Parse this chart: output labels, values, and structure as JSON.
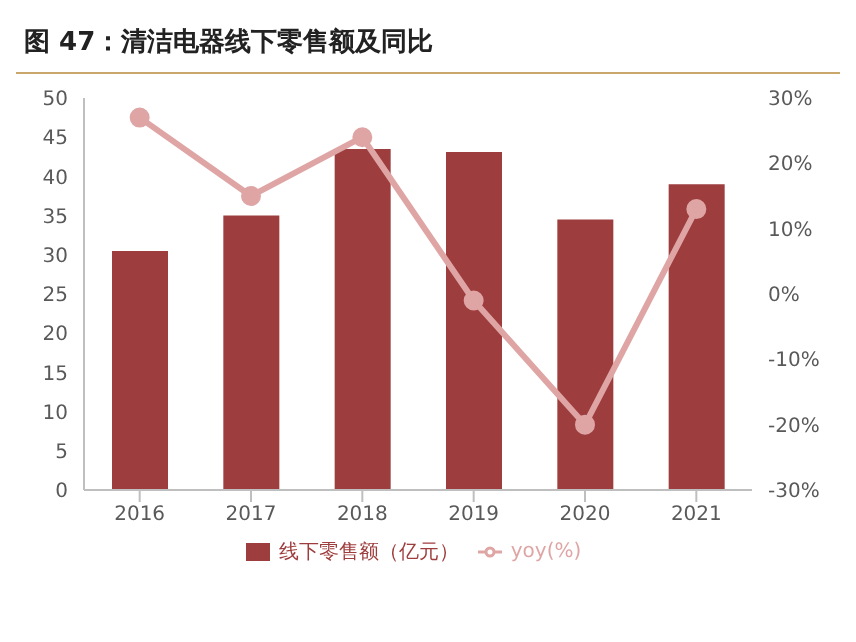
{
  "chart_data": {
    "type": "bar",
    "title": "图 47：清洁电器线下零售额及同比",
    "categories": [
      "2016",
      "2017",
      "2018",
      "2019",
      "2020",
      "2021"
    ],
    "series": [
      {
        "name": "线下零售额（亿元）",
        "color": "#9e3d3d",
        "values": [
          30.5,
          35,
          43.5,
          43.1,
          34.5,
          39
        ]
      },
      {
        "name": "yoy(%)",
        "type": "line",
        "axis": "y2",
        "color": "#dfa5a5",
        "values": [
          27,
          15,
          24,
          -1,
          -20,
          13
        ]
      }
    ],
    "ylim": [
      0,
      50
    ],
    "yticks": [
      0,
      5,
      10,
      15,
      20,
      25,
      30,
      35,
      40,
      45,
      50
    ],
    "y2lim": [
      -30,
      30
    ],
    "y2ticks": [
      {
        "value": -30,
        "label": "-30%"
      },
      {
        "value": -20,
        "label": "-20%"
      },
      {
        "value": -10,
        "label": "-10%"
      },
      {
        "value": 0,
        "label": "0%"
      },
      {
        "value": 10,
        "label": "10%"
      },
      {
        "value": 20,
        "label": "20%"
      },
      {
        "value": 30,
        "label": "30%"
      }
    ],
    "grid": false,
    "legend": "bottom",
    "marker": "circle"
  }
}
